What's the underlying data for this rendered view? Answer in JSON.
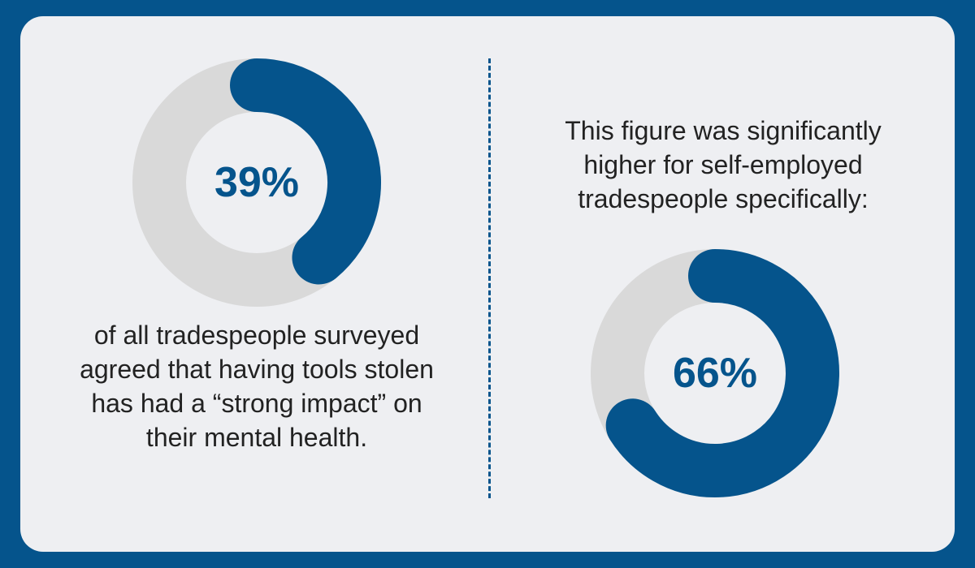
{
  "colors": {
    "frame": "#05548c",
    "card": "#eeeff2",
    "accent": "#05548c",
    "track": "#d9d9d9",
    "text": "#222222"
  },
  "left": {
    "percent_label": "39%",
    "caption_lines": [
      "of all tradespeople surveyed",
      "agreed that having tools stolen",
      "has had a “strong impact” on",
      "their mental health."
    ]
  },
  "right": {
    "intro_lines": [
      "This figure was significantly",
      "higher for self-employed",
      "tradespeople specifically:"
    ],
    "percent_label": "66%"
  },
  "chart_data": [
    {
      "type": "pie",
      "variant": "donut",
      "values": [
        39,
        61
      ],
      "labels": [
        "39%",
        ""
      ],
      "colors": [
        "#05548c",
        "#d9d9d9"
      ]
    },
    {
      "type": "pie",
      "variant": "donut",
      "values": [
        66,
        34
      ],
      "labels": [
        "66%",
        ""
      ],
      "colors": [
        "#05548c",
        "#d9d9d9"
      ]
    }
  ]
}
